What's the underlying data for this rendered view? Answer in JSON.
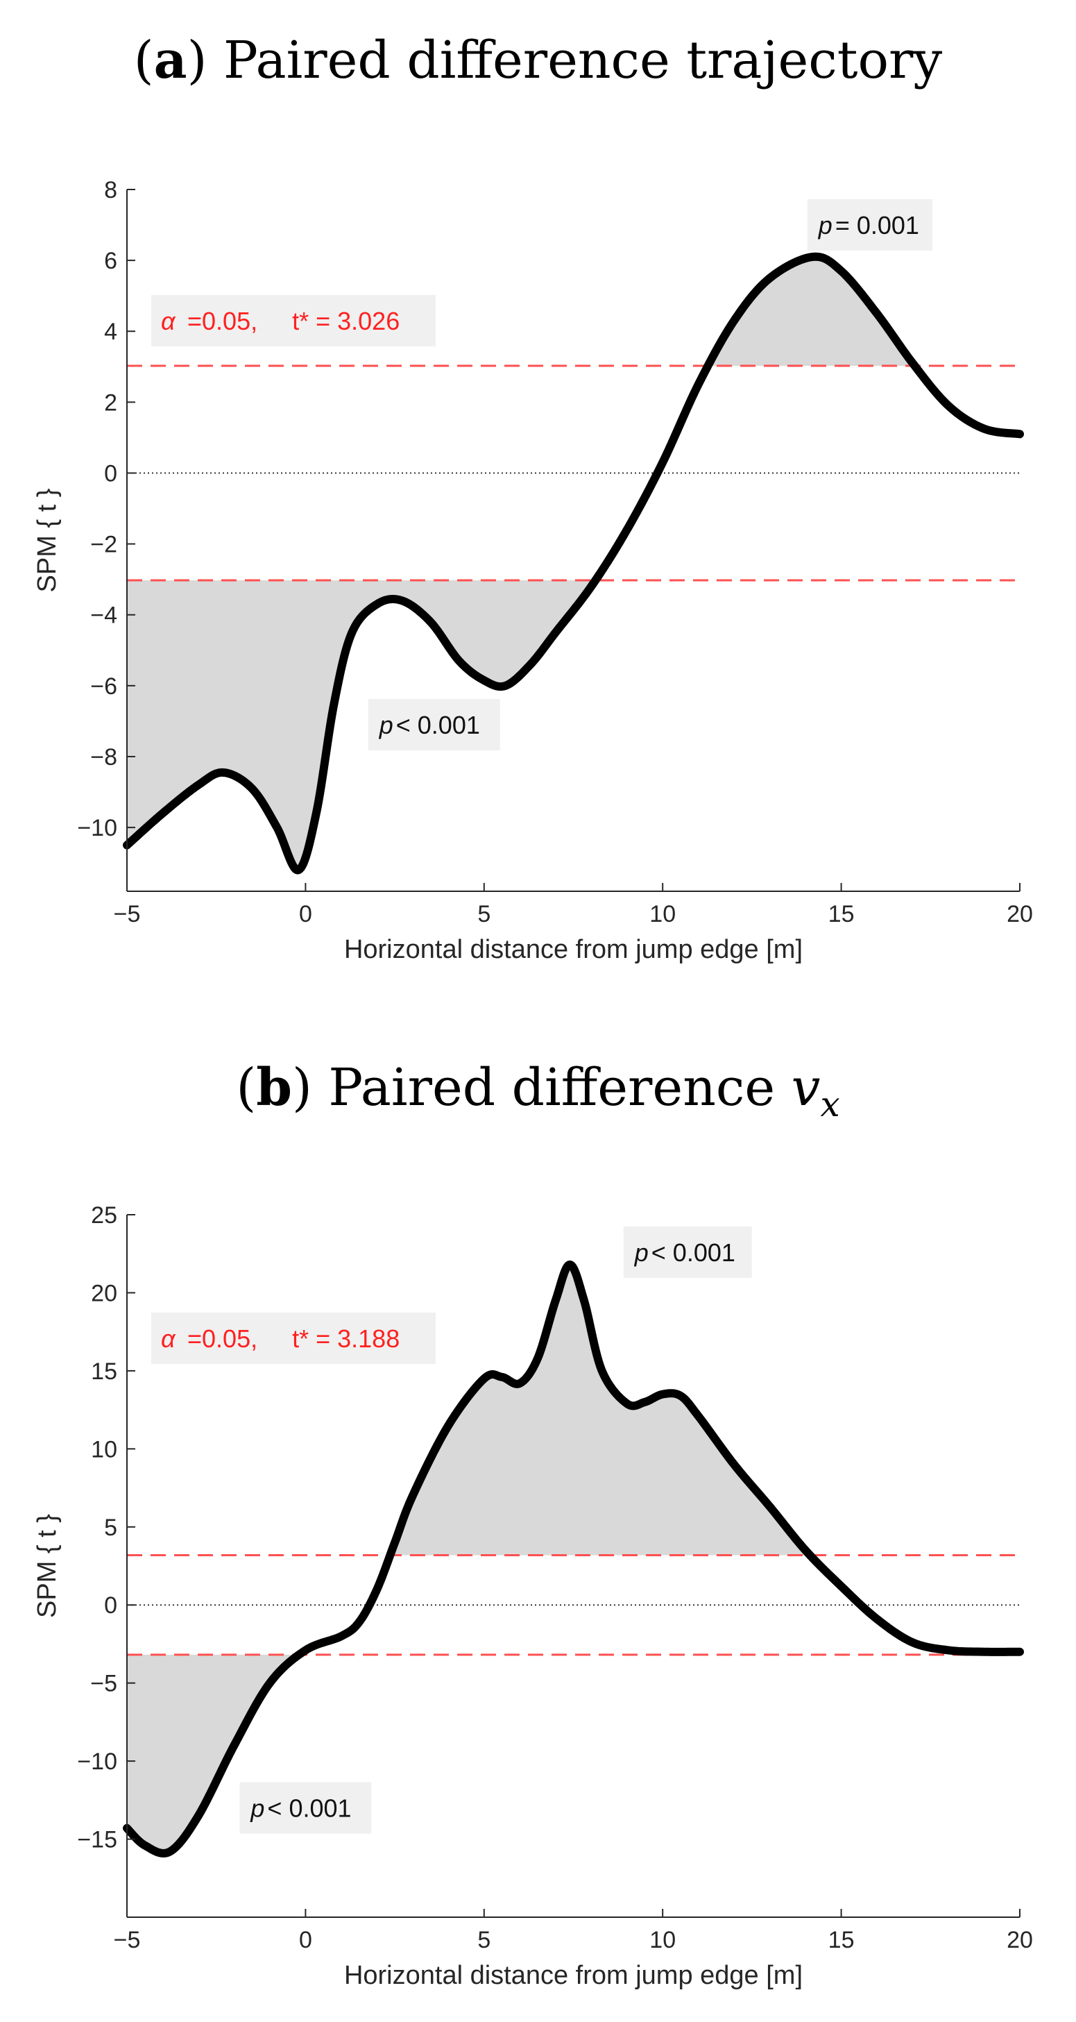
{
  "chart_data": [
    {
      "type": "line",
      "title_prefix": "(a)",
      "title": "Paired difference trajectory",
      "xlabel": "Horizontal distance from jump edge [m]",
      "ylabel": "SPM { t }",
      "xlim": [
        -5,
        20
      ],
      "ylim": [
        -11.8,
        8
      ],
      "xticks": [
        -5,
        0,
        5,
        10,
        15,
        20
      ],
      "yticks": [
        -10,
        -8,
        -6,
        -4,
        -2,
        0,
        2,
        4,
        6,
        8
      ],
      "threshold": 3.026,
      "alpha_label": "α",
      "threshold_label": "=0.05,     t* = 3.026",
      "series": [
        {
          "x": [
            -5,
            -4,
            -3,
            -2.3,
            -1.5,
            -0.8,
            -0.2,
            0.3,
            0.8,
            1.3,
            2,
            2.7,
            3.5,
            4.3,
            5,
            5.6,
            6.3,
            7,
            8,
            9,
            10,
            11,
            12,
            13,
            14.2,
            15,
            16,
            17,
            18,
            19,
            20
          ],
          "y": [
            -10.5,
            -9.6,
            -8.8,
            -8.45,
            -8.9,
            -10,
            -11.2,
            -9.6,
            -6.5,
            -4.5,
            -3.7,
            -3.6,
            -4.2,
            -5.3,
            -5.85,
            -6.0,
            -5.4,
            -4.5,
            -3.2,
            -1.6,
            0.3,
            2.5,
            4.3,
            5.5,
            6.1,
            5.7,
            4.5,
            3.1,
            1.9,
            1.25,
            1.1
          ]
        }
      ],
      "annotations": [
        {
          "p_symbol": "p",
          "text": "= 0.001",
          "x": 15.8,
          "y": 7.0
        },
        {
          "p_symbol": "p",
          "text": "< 0.001",
          "x": 3.6,
          "y": -7.1
        }
      ]
    },
    {
      "type": "line",
      "title_prefix": "(b)",
      "title": "Paired difference ",
      "title_math": "v",
      "title_sub": "x",
      "xlabel": "Horizontal distance from jump edge [m]",
      "ylabel": "SPM { t }",
      "xlim": [
        -5,
        20
      ],
      "ylim": [
        -20,
        25
      ],
      "xticks": [
        -5,
        0,
        5,
        10,
        15,
        20
      ],
      "yticks": [
        -15,
        -10,
        -5,
        0,
        5,
        10,
        15,
        20,
        25
      ],
      "threshold": 3.188,
      "alpha_label": "α",
      "threshold_label": "=0.05,     t* = 3.188",
      "series": [
        {
          "x": [
            -5,
            -4.5,
            -3.8,
            -3,
            -2,
            -1,
            0,
            1,
            1.5,
            2,
            2.5,
            3,
            4,
            5,
            5.5,
            6,
            6.5,
            7,
            7.4,
            7.8,
            8.3,
            9,
            9.5,
            10,
            10.5,
            11,
            12,
            13,
            14,
            15,
            16,
            17,
            18,
            19,
            20
          ],
          "y": [
            -14.3,
            -15.4,
            -15.8,
            -13.5,
            -9,
            -5,
            -2.9,
            -2.0,
            -1.1,
            1.0,
            4.0,
            7.0,
            11.5,
            14.5,
            14.6,
            14.2,
            15.8,
            19.5,
            21.8,
            19.5,
            15.0,
            12.9,
            13.0,
            13.5,
            13.4,
            12.1,
            9.0,
            6.3,
            3.5,
            1.2,
            -0.9,
            -2.4,
            -2.9,
            -3.0,
            -3.0
          ]
        }
      ],
      "annotations": [
        {
          "p_symbol": "p",
          "text": "< 0.001",
          "x": 10.7,
          "y": 22.6
        },
        {
          "p_symbol": "p",
          "text": "< 0.001",
          "x": 0,
          "y": -13.0
        }
      ]
    }
  ]
}
